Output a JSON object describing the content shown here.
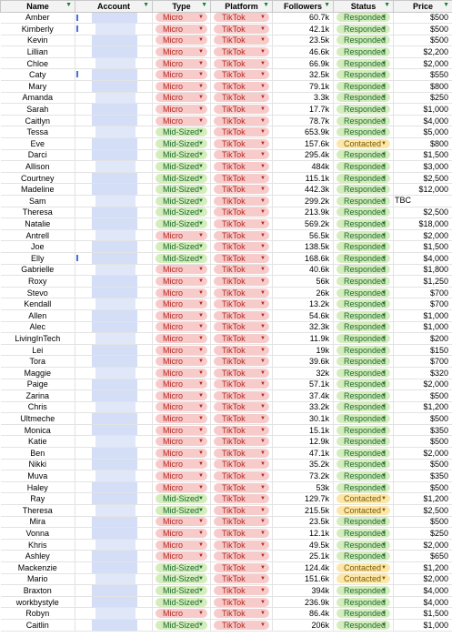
{
  "headers": [
    "Name",
    "Account",
    "Type",
    "Platform",
    "Followers",
    "Status",
    "Price"
  ],
  "colors": {
    "micro_bg": "#f8cbcb",
    "mid_bg": "#d4edbc",
    "responded_bg": "#d4edbc",
    "contacted_bg": "#fde7a8",
    "header_bg": "#f3f3f3",
    "filter_icon": "#188038"
  },
  "rows": [
    {
      "name": "Amber",
      "type": "Micro",
      "platform": "TikTok",
      "followers": "60.7k",
      "status": "Responded",
      "price": "$500"
    },
    {
      "name": "Kimberly",
      "type": "Micro",
      "platform": "TikTok",
      "followers": "42.1k",
      "status": "Responded",
      "price": "$500"
    },
    {
      "name": "Kevin",
      "type": "Micro",
      "platform": "TikTok",
      "followers": "23.5k",
      "status": "Responded",
      "price": "$500"
    },
    {
      "name": "Lillian",
      "type": "Micro",
      "platform": "TikTok",
      "followers": "46.6k",
      "status": "Responded",
      "price": "$2,200"
    },
    {
      "name": "Chloe",
      "type": "Micro",
      "platform": "TikTok",
      "followers": "66.9k",
      "status": "Responded",
      "price": "$2,000"
    },
    {
      "name": "Caty",
      "type": "Micro",
      "platform": "TikTok",
      "followers": "32.5k",
      "status": "Responded",
      "price": "$550"
    },
    {
      "name": "Mary",
      "type": "Micro",
      "platform": "TikTok",
      "followers": "79.1k",
      "status": "Responded",
      "price": "$800"
    },
    {
      "name": "Amanda",
      "type": "Micro",
      "platform": "TikTok",
      "followers": "3.3k",
      "status": "Responded",
      "price": "$250"
    },
    {
      "name": "Sarah",
      "type": "Micro",
      "platform": "TikTok",
      "followers": "17.7k",
      "status": "Responded",
      "price": "$1,000"
    },
    {
      "name": "Caitlyn",
      "type": "Micro",
      "platform": "TikTok",
      "followers": "78.7k",
      "status": "Responded",
      "price": "$4,000"
    },
    {
      "name": "Tessa",
      "type": "Mid-Sized",
      "platform": "TikTok",
      "followers": "653.9k",
      "status": "Responded",
      "price": "$5,000"
    },
    {
      "name": "Eve",
      "type": "Mid-Sized",
      "platform": "TikTok",
      "followers": "157.6k",
      "status": "Contacted",
      "price": "$800"
    },
    {
      "name": "Darci",
      "type": "Mid-Sized",
      "platform": "TikTok",
      "followers": "295.4k",
      "status": "Responded",
      "price": "$1,500"
    },
    {
      "name": "Allison",
      "type": "Mid-Sized",
      "platform": "TikTok",
      "followers": "484k",
      "status": "Responded",
      "price": "$3,000"
    },
    {
      "name": "Courtney",
      "type": "Mid-Sized",
      "platform": "TikTok",
      "followers": "115.1k",
      "status": "Responded",
      "price": "$2,500"
    },
    {
      "name": "Madeline",
      "type": "Mid-Sized",
      "platform": "TikTok",
      "followers": "442.3k",
      "status": "Responded",
      "price": "$12,000"
    },
    {
      "name": "Sam",
      "type": "Mid-Sized",
      "platform": "TikTok",
      "followers": "299.2k",
      "status": "Responded",
      "price": "",
      "note": "TBC"
    },
    {
      "name": "Theresa",
      "type": "Mid-Sized",
      "platform": "TikTok",
      "followers": "213.9k",
      "status": "Responded",
      "price": "$2,500"
    },
    {
      "name": "Natalie",
      "type": "Mid-Sized",
      "platform": "TikTok",
      "followers": "569.2k",
      "status": "Responded",
      "price": "$18,000"
    },
    {
      "name": "Antrell",
      "type": "Micro",
      "platform": "TikTok",
      "followers": "56.5k",
      "status": "Responded",
      "price": "$2,000"
    },
    {
      "name": "Joe",
      "type": "Mid-Sized",
      "platform": "TikTok",
      "followers": "138.5k",
      "status": "Responded",
      "price": "$1,500"
    },
    {
      "name": "Elly",
      "type": "Mid-Sized",
      "platform": "TikTok",
      "followers": "168.6k",
      "status": "Responded",
      "price": "$4,000"
    },
    {
      "name": "Gabrielle",
      "type": "Micro",
      "platform": "TikTok",
      "followers": "40.6k",
      "status": "Responded",
      "price": "$1,800"
    },
    {
      "name": "Roxy",
      "type": "Micro",
      "platform": "TikTok",
      "followers": "56k",
      "status": "Responded",
      "price": "$1,250"
    },
    {
      "name": "Stevo",
      "type": "Micro",
      "platform": "TikTok",
      "followers": "26k",
      "status": "Responded",
      "price": "$700"
    },
    {
      "name": "Kendall",
      "type": "Micro",
      "platform": "TikTok",
      "followers": "13.2k",
      "status": "Responded",
      "price": "$700"
    },
    {
      "name": "Allen",
      "type": "Micro",
      "platform": "TikTok",
      "followers": "54.6k",
      "status": "Responded",
      "price": "$1,000"
    },
    {
      "name": "Alec",
      "type": "Micro",
      "platform": "TikTok",
      "followers": "32.3k",
      "status": "Responded",
      "price": "$1,000"
    },
    {
      "name": "LivingInTech",
      "type": "Micro",
      "platform": "TikTok",
      "followers": "11.9k",
      "status": "Responded",
      "price": "$200"
    },
    {
      "name": "Lei",
      "type": "Micro",
      "platform": "TikTok",
      "followers": "19k",
      "status": "Responded",
      "price": "$150"
    },
    {
      "name": "Tora",
      "type": "Micro",
      "platform": "TikTok",
      "followers": "39.6k",
      "status": "Responded",
      "price": "$700"
    },
    {
      "name": "Maggie",
      "type": "Micro",
      "platform": "TikTok",
      "followers": "32k",
      "status": "Responded",
      "price": "$320"
    },
    {
      "name": "Paige",
      "type": "Micro",
      "platform": "TikTok",
      "followers": "57.1k",
      "status": "Responded",
      "price": "$2,000"
    },
    {
      "name": "Zarina",
      "type": "Micro",
      "platform": "TikTok",
      "followers": "37.4k",
      "status": "Responded",
      "price": "$500"
    },
    {
      "name": "Chris",
      "type": "Micro",
      "platform": "TikTok",
      "followers": "33.2k",
      "status": "Responded",
      "price": "$1,200"
    },
    {
      "name": "Ultmeche",
      "type": "Micro",
      "platform": "TikTok",
      "followers": "30.1k",
      "status": "Responded",
      "price": "$500"
    },
    {
      "name": "Monica",
      "type": "Micro",
      "platform": "TikTok",
      "followers": "15.1k",
      "status": "Responded",
      "price": "$350"
    },
    {
      "name": "Katie",
      "type": "Micro",
      "platform": "TikTok",
      "followers": "12.9k",
      "status": "Responded",
      "price": "$500"
    },
    {
      "name": "Ben",
      "type": "Micro",
      "platform": "TikTok",
      "followers": "47.1k",
      "status": "Responded",
      "price": "$2,000"
    },
    {
      "name": "Nikki",
      "type": "Micro",
      "platform": "TikTok",
      "followers": "35.2k",
      "status": "Responded",
      "price": "$500"
    },
    {
      "name": "Muva",
      "type": "Micro",
      "platform": "TikTok",
      "followers": "73.2k",
      "status": "Responded",
      "price": "$350"
    },
    {
      "name": "Haley",
      "type": "Micro",
      "platform": "TikTok",
      "followers": "53k",
      "status": "Responded",
      "price": "$500"
    },
    {
      "name": "Ray",
      "type": "Mid-Sized",
      "platform": "TikTok",
      "followers": "129.7k",
      "status": "Contacted",
      "price": "$1,200"
    },
    {
      "name": "Theresa",
      "type": "Mid-Sized",
      "platform": "TikTok",
      "followers": "215.5k",
      "status": "Contacted",
      "price": "$2,500"
    },
    {
      "name": "Mira",
      "type": "Micro",
      "platform": "TikTok",
      "followers": "23.5k",
      "status": "Responded",
      "price": "$500"
    },
    {
      "name": "Vonna",
      "type": "Micro",
      "platform": "TikTok",
      "followers": "12.1k",
      "status": "Responded",
      "price": "$250"
    },
    {
      "name": "Khris",
      "type": "Micro",
      "platform": "TikTok",
      "followers": "49.5k",
      "status": "Responded",
      "price": "$2,000"
    },
    {
      "name": "Ashley",
      "type": "Micro",
      "platform": "TikTok",
      "followers": "25.1k",
      "status": "Responded",
      "price": "$650"
    },
    {
      "name": "Mackenzie",
      "type": "Mid-Sized",
      "platform": "TikTok",
      "followers": "124.4k",
      "status": "Contacted",
      "price": "$1,200"
    },
    {
      "name": "Mario",
      "type": "Mid-Sized",
      "platform": "TikTok",
      "followers": "151.6k",
      "status": "Contacted",
      "price": "$2,000"
    },
    {
      "name": "Braxton",
      "type": "Mid-Sized",
      "platform": "TikTok",
      "followers": "394k",
      "status": "Responded",
      "price": "$4,000"
    },
    {
      "name": "workbystyle",
      "type": "Mid-Sized",
      "platform": "TikTok",
      "followers": "236.9k",
      "status": "Responded",
      "price": "$4,000"
    },
    {
      "name": "Robyn",
      "type": "Micro",
      "platform": "TikTok",
      "followers": "86.4k",
      "status": "Responded",
      "price": "$1,500"
    },
    {
      "name": "Caitlin",
      "type": "Mid-Sized",
      "platform": "TikTok",
      "followers": "206k",
      "status": "Responded",
      "price": "$1,000"
    }
  ]
}
